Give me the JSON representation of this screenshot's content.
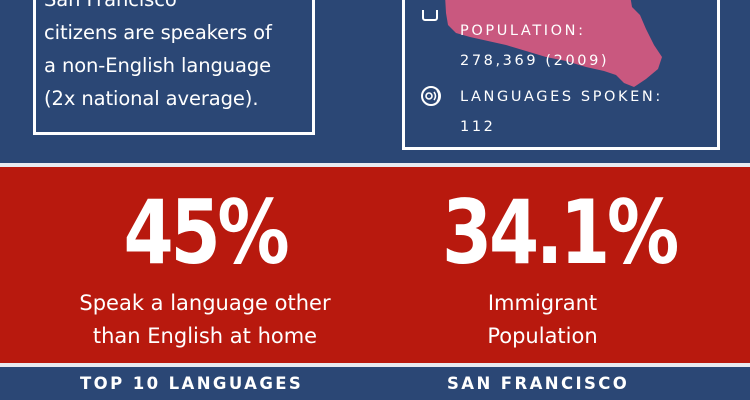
{
  "colors": {
    "navy": "#2b4775",
    "red": "#b8190e",
    "map_pink": "#c9587f",
    "white": "#ffffff"
  },
  "left_box": {
    "partial_line": "San Francisco",
    "lines": [
      "citizens are speakers of",
      "a non-English language",
      "(2x national average)."
    ]
  },
  "right_box": {
    "map_icon": "san-francisco-map-shape",
    "population": {
      "icon": "people-icon",
      "label": "POPULATION:",
      "value": "278,369 (2009)"
    },
    "languages": {
      "icon": "speech-icon",
      "label": "LANGUAGES SPOKEN:",
      "value": "112"
    }
  },
  "stats": [
    {
      "value": "45%",
      "caption_line1": "Speak a language other",
      "caption_line2": "than English at home"
    },
    {
      "value": "34.1%",
      "caption_line1": "Immigrant",
      "caption_line2": "Population"
    }
  ],
  "bottom": {
    "left_heading": "TOP 10 LANGUAGES",
    "right_heading": "SAN FRANCISCO"
  }
}
